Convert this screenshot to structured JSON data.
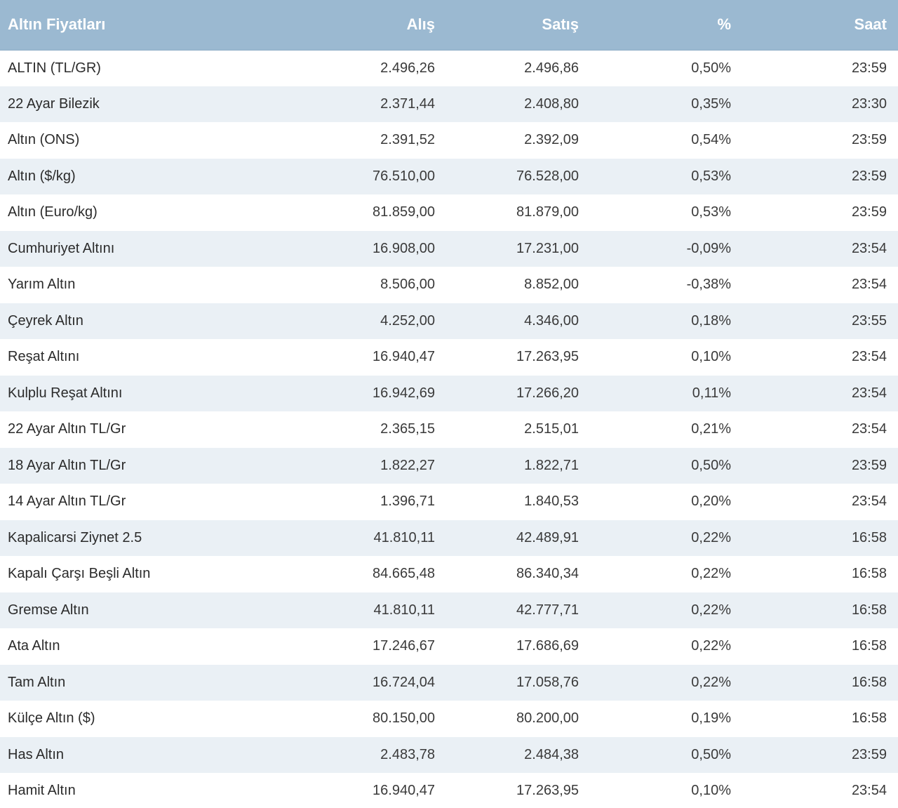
{
  "table": {
    "headers": {
      "name": "Altın Fiyatları",
      "buy": "Alış",
      "sell": "Satış",
      "change": "%",
      "time": "Saat"
    },
    "rows": [
      {
        "name": "ALTIN (TL/GR)",
        "buy": "2.496,26",
        "sell": "2.496,86",
        "change": "0,50%",
        "time": "23:59"
      },
      {
        "name": "22 Ayar Bilezik",
        "buy": "2.371,44",
        "sell": "2.408,80",
        "change": "0,35%",
        "time": "23:30"
      },
      {
        "name": "Altın (ONS)",
        "buy": "2.391,52",
        "sell": "2.392,09",
        "change": "0,54%",
        "time": "23:59"
      },
      {
        "name": "Altın ($/kg)",
        "buy": "76.510,00",
        "sell": "76.528,00",
        "change": "0,53%",
        "time": "23:59"
      },
      {
        "name": "Altın (Euro/kg)",
        "buy": "81.859,00",
        "sell": "81.879,00",
        "change": "0,53%",
        "time": "23:59"
      },
      {
        "name": "Cumhuriyet Altını",
        "buy": "16.908,00",
        "sell": "17.231,00",
        "change": "-0,09%",
        "time": "23:54"
      },
      {
        "name": "Yarım Altın",
        "buy": "8.506,00",
        "sell": "8.852,00",
        "change": "-0,38%",
        "time": "23:54"
      },
      {
        "name": "Çeyrek Altın",
        "buy": "4.252,00",
        "sell": "4.346,00",
        "change": "0,18%",
        "time": "23:55"
      },
      {
        "name": "Reşat Altını",
        "buy": "16.940,47",
        "sell": "17.263,95",
        "change": "0,10%",
        "time": "23:54"
      },
      {
        "name": "Kulplu Reşat Altını",
        "buy": "16.942,69",
        "sell": "17.266,20",
        "change": "0,11%",
        "time": "23:54"
      },
      {
        "name": "22 Ayar Altın TL/Gr",
        "buy": "2.365,15",
        "sell": "2.515,01",
        "change": "0,21%",
        "time": "23:54"
      },
      {
        "name": "18 Ayar Altın TL/Gr",
        "buy": "1.822,27",
        "sell": "1.822,71",
        "change": "0,50%",
        "time": "23:59"
      },
      {
        "name": "14 Ayar Altın TL/Gr",
        "buy": "1.396,71",
        "sell": "1.840,53",
        "change": "0,20%",
        "time": "23:54"
      },
      {
        "name": "Kapalicarsi Ziynet 2.5",
        "buy": "41.810,11",
        "sell": "42.489,91",
        "change": "0,22%",
        "time": "16:58"
      },
      {
        "name": "Kapalı Çarşı Beşli Altın",
        "buy": "84.665,48",
        "sell": "86.340,34",
        "change": "0,22%",
        "time": "16:58"
      },
      {
        "name": "Gremse Altın",
        "buy": "41.810,11",
        "sell": "42.777,71",
        "change": "0,22%",
        "time": "16:58"
      },
      {
        "name": "Ata Altın",
        "buy": "17.246,67",
        "sell": "17.686,69",
        "change": "0,22%",
        "time": "16:58"
      },
      {
        "name": "Tam Altın",
        "buy": "16.724,04",
        "sell": "17.058,76",
        "change": "0,22%",
        "time": "16:58"
      },
      {
        "name": "Külçe Altın ($)",
        "buy": "80.150,00",
        "sell": "80.200,00",
        "change": "0,19%",
        "time": "16:58"
      },
      {
        "name": "Has Altın",
        "buy": "2.483,78",
        "sell": "2.484,38",
        "change": "0,50%",
        "time": "23:59"
      },
      {
        "name": "Hamit Altın",
        "buy": "16.940,47",
        "sell": "17.263,95",
        "change": "0,10%",
        "time": "23:54"
      }
    ]
  },
  "colors": {
    "header_bg": "#9bb9d1",
    "header_text": "#ffffff",
    "row_alt_bg": "#eaf0f5",
    "row_bg": "#ffffff"
  }
}
